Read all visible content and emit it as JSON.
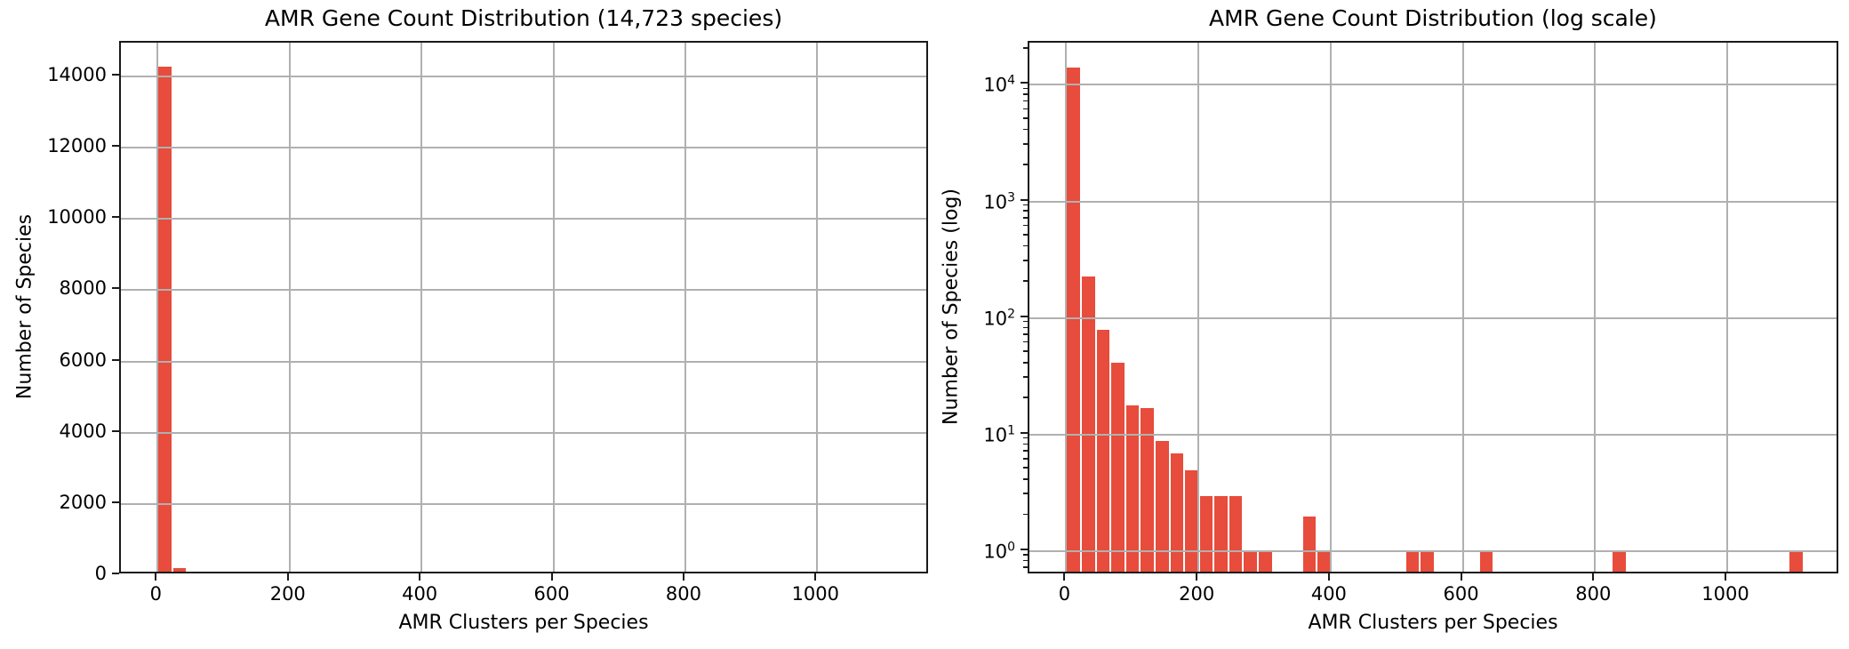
{
  "figure": {
    "background": "#ffffff",
    "colors": {
      "bar_fill": "#e74c3c",
      "bar_edge": "#ffffff",
      "grid": "#b0b0b0",
      "spine": "#1a1a1a",
      "text": "#000000"
    }
  },
  "chart_data": [
    {
      "type": "bar",
      "title": "AMR Gene Count Distribution (14,723 species)",
      "xlabel": "AMR Clusters per Species",
      "ylabel": "Number of Species",
      "yscale": "linear",
      "total_species": "14,723",
      "bins": {
        "start": 0,
        "width": 22.3,
        "count": 50
      },
      "values": [
        14296,
        230,
        80,
        42,
        18,
        17,
        9,
        7,
        5,
        3,
        3,
        3,
        1,
        1,
        0,
        0,
        2,
        1,
        0,
        0,
        0,
        0,
        0,
        1,
        1,
        0,
        0,
        0,
        1,
        0,
        0,
        0,
        0,
        0,
        0,
        0,
        0,
        1,
        0,
        0,
        0,
        0,
        0,
        0,
        0,
        0,
        0,
        0,
        0,
        1
      ],
      "xlim": [
        -55.75,
        1170.75
      ],
      "ylim": [
        0,
        14950
      ],
      "x_ticks": [
        0,
        200,
        400,
        600,
        800,
        1000
      ],
      "y_ticks": [
        0,
        2000,
        4000,
        6000,
        8000,
        10000,
        12000,
        14000
      ],
      "grid": true,
      "grid_above_bars": true,
      "legend": "none"
    },
    {
      "type": "bar",
      "title": "AMR Gene Count Distribution (log scale)",
      "xlabel": "AMR Clusters per Species",
      "ylabel": "Number of Species (log)",
      "yscale": "log",
      "bins": {
        "start": 0,
        "width": 22.3,
        "count": 50
      },
      "values": [
        14296,
        230,
        80,
        42,
        18,
        17,
        9,
        7,
        5,
        3,
        3,
        3,
        1,
        1,
        0,
        0,
        2,
        1,
        0,
        0,
        0,
        0,
        0,
        1,
        1,
        0,
        0,
        0,
        1,
        0,
        0,
        0,
        0,
        0,
        0,
        0,
        0,
        1,
        0,
        0,
        0,
        0,
        0,
        0,
        0,
        0,
        0,
        0,
        0,
        1
      ],
      "xlim": [
        -55.75,
        1170.75
      ],
      "ylim": [
        0.62,
        23000
      ],
      "x_ticks": [
        0,
        200,
        400,
        600,
        800,
        1000
      ],
      "y_tick_exponents": [
        0,
        1,
        2,
        3,
        4
      ],
      "grid": true,
      "grid_above_bars": true,
      "legend": "none"
    }
  ]
}
